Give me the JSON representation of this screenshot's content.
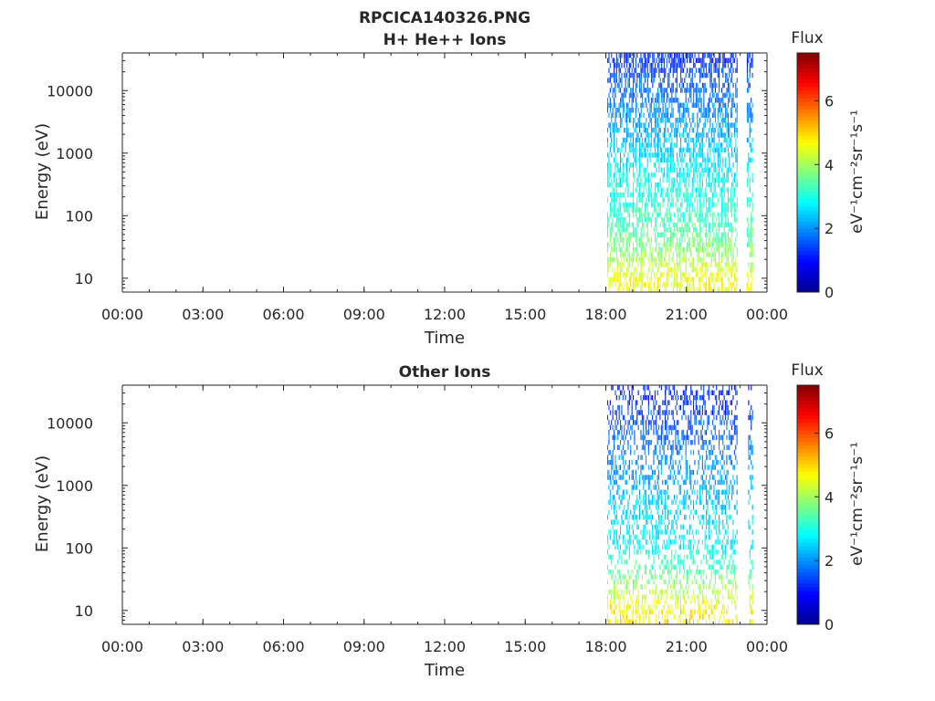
{
  "figure": {
    "title": "RPCICA140326.PNG"
  },
  "colors": {
    "axis": "#262626",
    "colormap": [
      "#00008f",
      "#0000ff",
      "#0080ff",
      "#00ffff",
      "#80ff80",
      "#ffff00",
      "#ff8000",
      "#ff0000",
      "#800000"
    ]
  },
  "chart_data": [
    {
      "type": "heatmap",
      "title": "H+ He++ Ions",
      "xlabel": "Time",
      "ylabel": "Energy (eV)",
      "yscale": "log",
      "ylim": [
        6,
        40000
      ],
      "y_ticks": [
        10,
        100,
        1000,
        10000
      ],
      "y_tick_labels": [
        "10",
        "100",
        "1000",
        "10000"
      ],
      "x_tick_labels": [
        "00:00",
        "03:00",
        "06:00",
        "09:00",
        "12:00",
        "15:00",
        "18:00",
        "21:00",
        "00:00"
      ],
      "x_range_hours": [
        0,
        24
      ],
      "colorbar": {
        "label": "Flux",
        "units": "eV⁻¹cm⁻²sr⁻¹s⁻¹",
        "range": [
          0,
          7.5
        ],
        "ticks": [
          0,
          2,
          4,
          6
        ],
        "tick_labels": [
          "0",
          "2",
          "4",
          "6"
        ]
      },
      "segments": [
        {
          "start_hour": 18.05,
          "end_hour": 19.3,
          "data_level": 2.3
        },
        {
          "start_hour": 19.3,
          "end_hour": 22.9,
          "data_level": 2.6
        },
        {
          "start_hour": 23.25,
          "end_hour": 23.45,
          "data_level": 2.2
        }
      ],
      "flux_by_energy": [
        {
          "energy": 30000,
          "flux": 1.3
        },
        {
          "energy": 10000,
          "flux": 1.7
        },
        {
          "energy": 3000,
          "flux": 2.1
        },
        {
          "energy": 1000,
          "flux": 2.5
        },
        {
          "energy": 500,
          "flux": 2.8
        },
        {
          "energy": 200,
          "flux": 3.0
        },
        {
          "energy": 60,
          "flux": 3.4
        },
        {
          "energy": 25,
          "flux": 3.9
        },
        {
          "energy": 10,
          "flux": 4.6
        }
      ],
      "grid": false
    },
    {
      "type": "heatmap",
      "title": "Other Ions",
      "xlabel": "Time",
      "ylabel": "Energy (eV)",
      "yscale": "log",
      "ylim": [
        6,
        40000
      ],
      "y_ticks": [
        10,
        100,
        1000,
        10000
      ],
      "y_tick_labels": [
        "10",
        "100",
        "1000",
        "10000"
      ],
      "x_tick_labels": [
        "00:00",
        "03:00",
        "06:00",
        "09:00",
        "12:00",
        "15:00",
        "18:00",
        "21:00",
        "00:00"
      ],
      "x_range_hours": [
        0,
        24
      ],
      "colorbar": {
        "label": "Flux",
        "units": "eV⁻¹cm⁻²sr⁻¹s⁻¹",
        "range": [
          0,
          7.5
        ],
        "ticks": [
          0,
          2,
          4,
          6
        ],
        "tick_labels": [
          "0",
          "2",
          "4",
          "6"
        ]
      },
      "segments": [
        {
          "start_hour": 18.05,
          "end_hour": 20.2,
          "data_level": 1.5
        },
        {
          "start_hour": 20.2,
          "end_hour": 22.9,
          "data_level": 2.4
        },
        {
          "start_hour": 23.3,
          "end_hour": 23.45,
          "data_level": 2.0
        }
      ],
      "flux_by_energy": [
        {
          "energy": 30000,
          "flux": 1.2
        },
        {
          "energy": 10000,
          "flux": 1.5
        },
        {
          "energy": 3000,
          "flux": 1.9
        },
        {
          "energy": 1000,
          "flux": 2.2
        },
        {
          "energy": 400,
          "flux": 2.5
        },
        {
          "energy": 100,
          "flux": 2.8
        },
        {
          "energy": 40,
          "flux": 3.5
        },
        {
          "energy": 10,
          "flux": 4.8
        }
      ],
      "grid": false
    }
  ]
}
